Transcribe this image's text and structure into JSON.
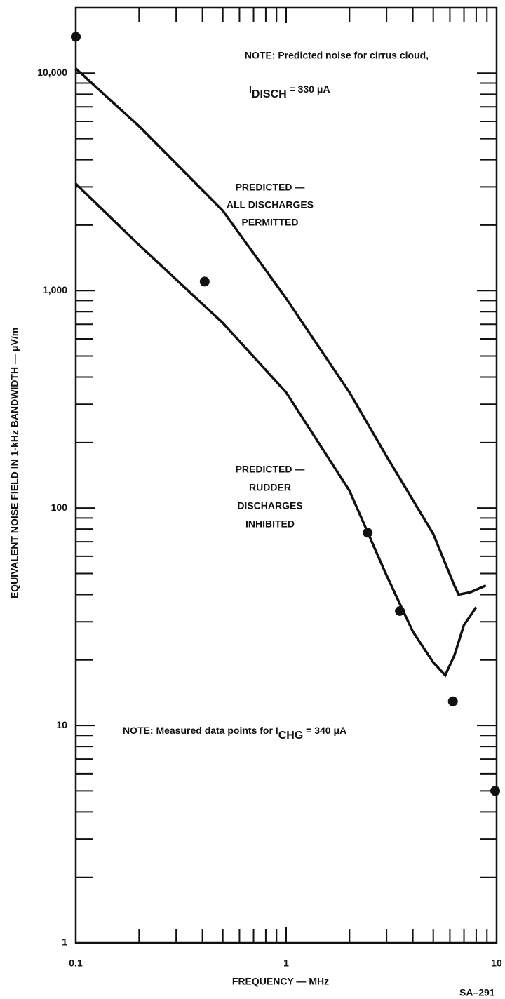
{
  "chart_data": {
    "type": "line",
    "x_label": "FREQUENCY — MHz",
    "y_label": "EQUIVALENT NOISE FIELD IN 1-kHz BANDWIDTH — μV/m",
    "xlog": true,
    "ylog": true,
    "xlim": [
      0.1,
      10
    ],
    "ylim": [
      1,
      20000
    ],
    "xticks": [
      0.1,
      1,
      10
    ],
    "yticks": [
      1,
      10,
      100,
      {
        "value": 1000,
        "label": "1,000"
      },
      {
        "value": 10000,
        "label": "10,000"
      }
    ],
    "color": "#111111",
    "series": [
      {
        "x": [
          0.1,
          0.2,
          0.5,
          1,
          2,
          3,
          5,
          6.3,
          6.6,
          7.5,
          8.9
        ],
        "values": [
          10500,
          5700,
          2330,
          920,
          340,
          173,
          76,
          44,
          40,
          41,
          44
        ]
      },
      {
        "x": [
          0.1,
          0.2,
          0.5,
          1,
          2,
          3,
          4,
          5,
          5.7,
          6.3,
          7,
          8
        ],
        "values": [
          3100,
          1620,
          710,
          340,
          120,
          49,
          27,
          19.5,
          17,
          21,
          29,
          35
        ]
      }
    ],
    "points": {
      "x": [
        0.1,
        0.41,
        2.44,
        3.47,
        6.2,
        9.85
      ],
      "values": [
        14700,
        1100,
        77,
        33.6,
        12.9,
        5
      ]
    },
    "annotations": [
      {
        "text": "NOTE:  Predicted noise for cirrus cloud,"
      },
      {
        "text": "I",
        "sub": "DISCH",
        "after": " = 330 μA"
      },
      {
        "lines": [
          "PREDICTED —",
          "ALL DISCHARGES",
          "PERMITTED"
        ]
      },
      {
        "lines": [
          "PREDICTED —",
          "RUDDER",
          "DISCHARGES",
          "INHIBITED"
        ]
      },
      {
        "text": "NOTE:  Measured data points for I",
        "sub": "CHG",
        "after": " = 340 μA"
      },
      {
        "text": "SA–291"
      }
    ]
  }
}
